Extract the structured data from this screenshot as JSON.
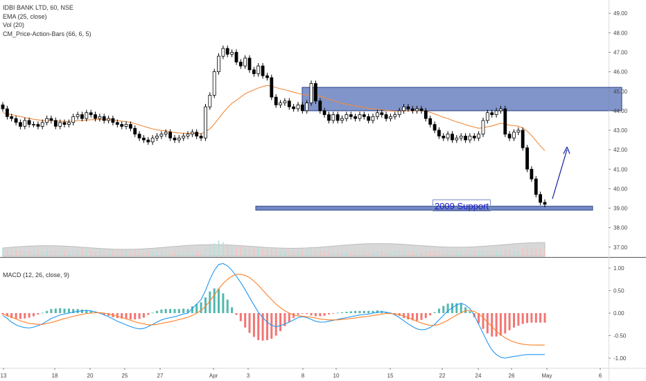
{
  "legend": {
    "symbol": "IDBI BANK LTD, 60, NSE",
    "ema": "EMA (25, close)",
    "vol": "Vol (20)",
    "cm": "CM_Price-Action-Bars (66, 6, 5)",
    "macd": "MACD (12, 26, close, 9)"
  },
  "annotation": {
    "support_label": "2009 Support"
  },
  "colors": {
    "up": "#26a69a",
    "down": "#000000",
    "ema": "#f08a3c",
    "zone": "#5d77bb",
    "macd_line": "#2196f3",
    "signal_line": "#ff7f27",
    "hist_pos": "#26a69a",
    "hist_neg": "#ef5350",
    "arrow": "#1f2ea8"
  },
  "chart_data": [
    {
      "type": "candlestick",
      "title": "IDBI BANK LTD, 60, NSE",
      "y_ticks": [
        "49.00",
        "48.00",
        "47.00",
        "46.00",
        "45.00",
        "44.00",
        "43.00",
        "42.00",
        "41.00",
        "40.00",
        "39.00",
        "38.00",
        "37.00"
      ],
      "ylim": [
        36.6,
        49.4
      ],
      "x_ticks": [
        "13",
        "18",
        "20",
        "25",
        "27",
        "Apr",
        "3",
        "8",
        "10",
        "15",
        "22",
        "24",
        "26",
        "May",
        "6"
      ],
      "close": [
        44.1,
        43.7,
        43.6,
        43.4,
        43.2,
        43.5,
        43.3,
        43.3,
        43.2,
        43.4,
        43.6,
        43.5,
        43.2,
        43.4,
        43.3,
        43.4,
        43.7,
        43.8,
        43.6,
        43.9,
        43.8,
        43.6,
        43.7,
        43.5,
        43.6,
        43.4,
        43.3,
        43.2,
        43.3,
        43.1,
        42.8,
        42.6,
        42.5,
        42.4,
        42.6,
        42.7,
        42.8,
        42.9,
        42.6,
        42.5,
        42.6,
        42.7,
        42.8,
        42.9,
        42.7,
        42.6,
        44.2,
        44.8,
        46.0,
        46.8,
        47.2,
        46.9,
        47.0,
        46.5,
        46.3,
        46.7,
        46.1,
        45.9,
        46.3,
        45.8,
        45.7,
        44.7,
        44.3,
        44.4,
        44.5,
        44.2,
        44.1,
        44.3,
        44.0,
        44.4,
        45.4,
        44.5,
        44.0,
        43.8,
        43.5,
        43.8,
        43.5,
        43.6,
        43.8,
        43.7,
        43.6,
        43.8,
        43.7,
        43.5,
        43.7,
        43.9,
        43.8,
        43.6,
        43.7,
        43.8,
        44.0,
        44.2,
        44.1,
        44.0,
        44.1,
        44.0,
        43.6,
        43.3,
        43.0,
        42.7,
        42.6,
        42.8,
        42.5,
        42.6,
        42.7,
        42.5,
        42.7,
        42.6,
        42.8,
        43.5,
        43.9,
        43.8,
        44.0,
        44.1,
        42.8,
        42.6,
        42.9,
        43.0,
        42.1,
        41.0,
        40.5,
        39.7,
        39.3,
        39.2
      ],
      "ema_25": [
        43.9,
        43.85,
        43.8,
        43.75,
        43.7,
        43.65,
        43.6,
        43.56,
        43.53,
        43.5,
        43.5,
        43.5,
        43.48,
        43.47,
        43.45,
        43.45,
        43.47,
        43.5,
        43.5,
        43.52,
        43.54,
        43.54,
        43.55,
        43.54,
        43.54,
        43.53,
        43.5,
        43.46,
        43.44,
        43.4,
        43.34,
        43.27,
        43.2,
        43.13,
        43.07,
        43.02,
        42.99,
        42.97,
        42.93,
        42.88,
        42.86,
        42.85,
        42.84,
        42.85,
        42.84,
        42.82,
        42.93,
        43.07,
        43.32,
        43.6,
        43.9,
        44.15,
        44.38,
        44.54,
        44.7,
        44.87,
        44.98,
        45.07,
        45.17,
        45.24,
        45.3,
        45.26,
        45.19,
        45.13,
        45.08,
        45.02,
        44.95,
        44.9,
        44.83,
        44.8,
        44.84,
        44.81,
        44.75,
        44.67,
        44.58,
        44.52,
        44.44,
        44.38,
        44.34,
        44.29,
        44.24,
        44.21,
        44.17,
        44.12,
        44.09,
        44.07,
        44.05,
        44.01,
        43.99,
        43.98,
        43.98,
        43.99,
        44.0,
        44.0,
        44.0,
        44.0,
        43.97,
        43.92,
        43.84,
        43.75,
        43.66,
        43.6,
        43.5,
        43.43,
        43.37,
        43.28,
        43.22,
        43.16,
        43.1,
        43.13,
        43.18,
        43.22,
        43.29,
        43.36,
        43.32,
        43.26,
        43.23,
        43.21,
        43.11,
        42.95,
        42.73,
        42.46,
        42.19,
        41.95
      ],
      "volume": [
        0.9,
        0.6,
        0.5,
        0.7,
        0.6,
        0.5,
        0.6,
        0.8,
        0.5,
        0.4,
        0.6,
        0.5,
        0.7,
        0.5,
        0.6,
        0.4,
        0.5,
        0.6,
        0.7,
        0.5,
        0.6,
        0.5,
        0.6,
        0.4,
        0.5,
        0.6,
        0.5,
        0.7,
        0.6,
        0.5,
        0.6,
        0.5,
        0.4,
        0.5,
        0.6,
        0.5,
        0.6,
        0.5,
        0.4,
        0.5,
        0.6,
        0.5,
        0.6,
        0.5,
        0.6,
        0.5,
        0.9,
        1.2,
        1.5,
        1.8,
        1.6,
        1.4,
        1.2,
        1.0,
        1.1,
        0.9,
        0.8,
        0.9,
        1.0,
        0.8,
        0.7,
        0.8,
        0.6,
        0.5,
        0.6,
        0.5,
        0.6,
        0.5,
        0.6,
        0.7,
        0.9,
        0.6,
        0.5,
        0.6,
        0.5,
        0.4,
        0.5,
        0.4,
        0.5,
        0.4,
        0.5,
        0.6,
        0.5,
        0.4,
        0.5,
        0.6,
        0.5,
        0.4,
        0.5,
        0.6,
        0.7,
        0.5,
        0.4,
        0.5,
        0.4,
        0.5,
        0.6,
        0.5,
        0.6,
        0.5,
        0.4,
        0.5,
        0.4,
        0.5,
        0.6,
        0.5,
        0.4,
        0.5,
        0.6,
        0.7,
        0.6,
        0.5,
        0.6,
        0.5,
        0.8,
        0.7,
        0.6,
        0.5,
        0.9,
        1.1,
        1.0,
        0.9,
        0.8,
        0.7
      ],
      "resistance_zone": [
        44.0,
        45.2
      ],
      "support_zone": [
        38.9,
        39.1
      ],
      "annotation": "2009 Support"
    },
    {
      "type": "line",
      "title": "MACD (12, 26, close, 9)",
      "y_ticks": [
        "1.00",
        "0.50",
        "0.00",
        "-0.50",
        "-1.00"
      ],
      "ylim": [
        -1.2,
        1.2
      ],
      "macd": [
        -0.05,
        -0.12,
        -0.2,
        -0.26,
        -0.3,
        -0.32,
        -0.33,
        -0.31,
        -0.28,
        -0.24,
        -0.18,
        -0.12,
        -0.08,
        -0.04,
        -0.02,
        0.0,
        0.02,
        0.04,
        0.05,
        0.06,
        0.05,
        0.03,
        0.0,
        -0.04,
        -0.08,
        -0.13,
        -0.18,
        -0.22,
        -0.26,
        -0.3,
        -0.33,
        -0.35,
        -0.34,
        -0.3,
        -0.25,
        -0.2,
        -0.15,
        -0.12,
        -0.1,
        -0.08,
        -0.05,
        -0.02,
        0.0,
        0.1,
        0.2,
        0.3,
        0.5,
        0.75,
        0.95,
        1.08,
        1.1,
        1.05,
        0.95,
        0.82,
        0.68,
        0.52,
        0.35,
        0.18,
        0.02,
        -0.1,
        -0.2,
        -0.27,
        -0.3,
        -0.28,
        -0.24,
        -0.2,
        -0.15,
        -0.1,
        -0.08,
        -0.1,
        -0.14,
        -0.18,
        -0.2,
        -0.2,
        -0.18,
        -0.16,
        -0.14,
        -0.12,
        -0.1,
        -0.08,
        -0.06,
        -0.04,
        -0.03,
        -0.02,
        0.0,
        0.02,
        0.03,
        0.02,
        0.0,
        -0.04,
        -0.1,
        -0.17,
        -0.24,
        -0.3,
        -0.35,
        -0.37,
        -0.36,
        -0.32,
        -0.25,
        -0.15,
        -0.05,
        0.05,
        0.12,
        0.18,
        0.22,
        0.18,
        0.1,
        -0.05,
        -0.25,
        -0.45,
        -0.65,
        -0.82,
        -0.92,
        -0.98,
        -1.0,
        -0.98,
        -0.96,
        -0.95,
        -0.93,
        -0.92,
        -0.92,
        -0.92,
        -0.92,
        -0.92
      ],
      "signal": [
        -0.02,
        -0.05,
        -0.09,
        -0.13,
        -0.17,
        -0.2,
        -0.23,
        -0.24,
        -0.25,
        -0.25,
        -0.23,
        -0.21,
        -0.18,
        -0.15,
        -0.12,
        -0.1,
        -0.07,
        -0.05,
        -0.03,
        -0.01,
        0.0,
        0.01,
        0.01,
        0.0,
        -0.02,
        -0.04,
        -0.07,
        -0.1,
        -0.13,
        -0.16,
        -0.19,
        -0.22,
        -0.24,
        -0.26,
        -0.26,
        -0.25,
        -0.23,
        -0.21,
        -0.19,
        -0.17,
        -0.14,
        -0.12,
        -0.09,
        -0.05,
        0.0,
        0.06,
        0.15,
        0.27,
        0.4,
        0.54,
        0.66,
        0.75,
        0.82,
        0.86,
        0.86,
        0.84,
        0.79,
        0.71,
        0.62,
        0.51,
        0.4,
        0.3,
        0.2,
        0.12,
        0.05,
        0.0,
        -0.04,
        -0.06,
        -0.07,
        -0.08,
        -0.09,
        -0.11,
        -0.13,
        -0.14,
        -0.15,
        -0.15,
        -0.15,
        -0.14,
        -0.13,
        -0.12,
        -0.11,
        -0.09,
        -0.08,
        -0.07,
        -0.05,
        -0.04,
        -0.02,
        -0.01,
        -0.01,
        -0.02,
        -0.04,
        -0.06,
        -0.1,
        -0.14,
        -0.18,
        -0.22,
        -0.25,
        -0.27,
        -0.27,
        -0.25,
        -0.21,
        -0.16,
        -0.1,
        -0.04,
        0.01,
        0.05,
        0.06,
        0.04,
        -0.02,
        -0.1,
        -0.2,
        -0.3,
        -0.4,
        -0.48,
        -0.55,
        -0.6,
        -0.64,
        -0.67,
        -0.69,
        -0.7,
        -0.71,
        -0.71,
        -0.71,
        -0.71
      ]
    }
  ]
}
